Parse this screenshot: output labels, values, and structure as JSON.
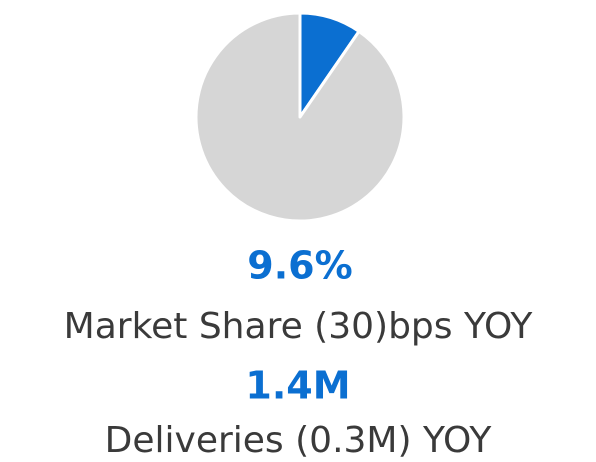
{
  "chart_data": {
    "type": "pie",
    "values": [
      9.6,
      90.4
    ],
    "value_labels": [
      "9.6%",
      null
    ],
    "colors": [
      "#0b6fd1",
      "#d6d6d6"
    ],
    "caption": "Market Share (30)bps YOY"
  },
  "metric": {
    "value": "1.4M",
    "caption": "Deliveries (0.3M) YOY"
  }
}
